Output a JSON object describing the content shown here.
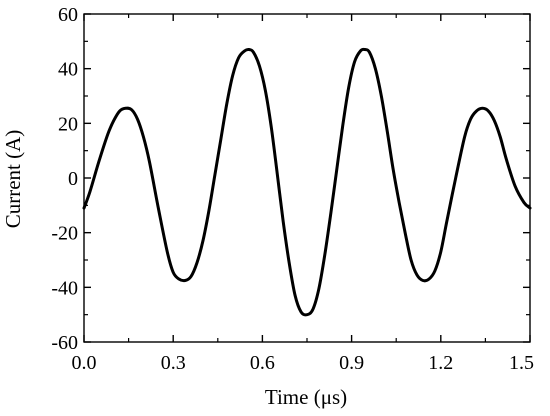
{
  "chart_data": {
    "type": "line",
    "xlabel": "Time (μs)",
    "ylabel": "Current (A)",
    "xlim": [
      0.0,
      1.5
    ],
    "ylim": [
      -60,
      60
    ],
    "xticks": [
      "0.0",
      "0.3",
      "0.6",
      "0.9",
      "1.2",
      "1.5"
    ],
    "yticks": [
      "60",
      "40",
      "20",
      "0",
      "-20",
      "-40",
      "-60"
    ],
    "grid": false,
    "legend": "none",
    "line_color": "#000000",
    "series": [
      {
        "x": [
          0.0,
          0.02,
          0.05,
          0.08,
          0.1,
          0.12,
          0.14,
          0.16,
          0.18,
          0.2,
          0.22,
          0.25,
          0.28,
          0.3,
          0.32,
          0.34,
          0.36,
          0.38,
          0.4,
          0.42,
          0.44,
          0.46,
          0.48,
          0.5,
          0.52,
          0.54,
          0.555,
          0.57,
          0.59,
          0.61,
          0.63,
          0.65,
          0.67,
          0.69,
          0.71,
          0.73,
          0.75,
          0.77,
          0.79,
          0.81,
          0.83,
          0.85,
          0.87,
          0.89,
          0.91,
          0.93,
          0.945,
          0.96,
          0.98,
          1.0,
          1.02,
          1.04,
          1.06,
          1.08,
          1.1,
          1.12,
          1.14,
          1.16,
          1.18,
          1.2,
          1.22,
          1.25,
          1.28,
          1.3,
          1.32,
          1.34,
          1.36,
          1.38,
          1.4,
          1.42,
          1.45,
          1.48,
          1.5
        ],
        "y": [
          -11,
          -5,
          6,
          16,
          21,
          24.5,
          25.5,
          25,
          21.5,
          15,
          6,
          -11,
          -27,
          -34.5,
          -37,
          -37.5,
          -36,
          -31,
          -23,
          -12,
          1,
          14,
          27,
          37.5,
          44,
          46.5,
          47,
          46,
          41,
          32,
          18.5,
          1.5,
          -16,
          -31,
          -43,
          -49,
          -50,
          -48,
          -40.5,
          -28,
          -13,
          3,
          19,
          33,
          42.5,
          46.5,
          47,
          46,
          40,
          30,
          17,
          3,
          -9,
          -20,
          -30,
          -35.5,
          -37.5,
          -37,
          -34,
          -27,
          -16,
          0,
          15,
          21.5,
          24.5,
          25.5,
          24.5,
          21,
          15,
          7,
          -3,
          -9,
          -11
        ]
      }
    ]
  }
}
